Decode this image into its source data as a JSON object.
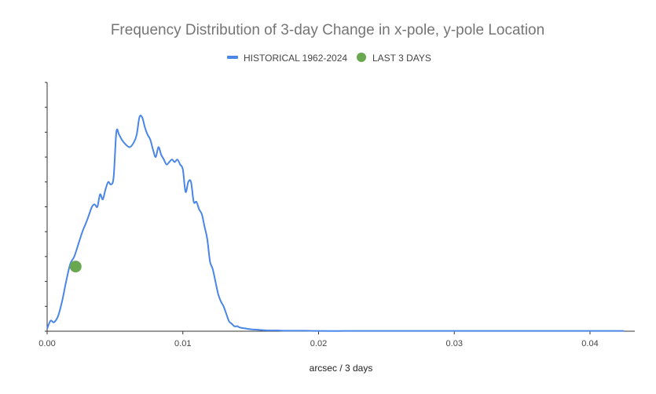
{
  "chart_data": {
    "type": "line",
    "title": "Frequency Distribution of 3-day Change in x-pole, y-pole Location",
    "xlabel": "arcsec / 3 days",
    "ylabel": "",
    "xlim": [
      0,
      0.0433
    ],
    "ylim": [
      0,
      1.0
    ],
    "x_ticks": [
      0.0,
      0.01,
      0.02,
      0.03,
      0.04
    ],
    "x_tick_labels": [
      "0.00",
      "0.01",
      "0.02",
      "0.03",
      "0.04"
    ],
    "y_tick_labels_shown": false,
    "grid": false,
    "legend": "top-center",
    "series": [
      {
        "name": "HISTORICAL 1962-2024",
        "type": "line",
        "color": "#4a86e8",
        "x": [
          0.0,
          0.00025,
          0.0005,
          0.0008,
          0.0011,
          0.0014,
          0.0017,
          0.002,
          0.0023,
          0.0026,
          0.0029,
          0.0031,
          0.0033,
          0.0035,
          0.0037,
          0.0039,
          0.0041,
          0.0043,
          0.0045,
          0.0047,
          0.0049,
          0.0051,
          0.0053,
          0.0055,
          0.0058,
          0.0061,
          0.0064,
          0.0066,
          0.0068,
          0.007,
          0.0072,
          0.0074,
          0.0076,
          0.0078,
          0.008,
          0.0082,
          0.0084,
          0.0086,
          0.0088,
          0.009,
          0.0092,
          0.0094,
          0.0096,
          0.0098,
          0.01,
          0.0102,
          0.0104,
          0.0106,
          0.0108,
          0.011,
          0.0112,
          0.0114,
          0.0116,
          0.0118,
          0.012,
          0.0122,
          0.0124,
          0.0126,
          0.0128,
          0.013,
          0.0132,
          0.0134,
          0.0136,
          0.0138,
          0.014,
          0.0142,
          0.0145,
          0.015,
          0.0155,
          0.016,
          0.0165,
          0.017,
          0.0175,
          0.018,
          0.019,
          0.02,
          0.022,
          0.024,
          0.026,
          0.028,
          0.03,
          0.032,
          0.034,
          0.036,
          0.038,
          0.04,
          0.0425
        ],
        "values": [
          0.01,
          0.042,
          0.036,
          0.06,
          0.12,
          0.2,
          0.27,
          0.3,
          0.35,
          0.4,
          0.44,
          0.47,
          0.5,
          0.51,
          0.5,
          0.55,
          0.53,
          0.57,
          0.6,
          0.59,
          0.62,
          0.8,
          0.79,
          0.77,
          0.75,
          0.74,
          0.76,
          0.79,
          0.86,
          0.86,
          0.82,
          0.79,
          0.77,
          0.73,
          0.7,
          0.74,
          0.71,
          0.69,
          0.67,
          0.68,
          0.69,
          0.68,
          0.69,
          0.67,
          0.65,
          0.56,
          0.6,
          0.6,
          0.52,
          0.52,
          0.49,
          0.47,
          0.42,
          0.37,
          0.28,
          0.25,
          0.2,
          0.15,
          0.12,
          0.1,
          0.07,
          0.04,
          0.03,
          0.02,
          0.02,
          0.015,
          0.012,
          0.008,
          0.006,
          0.004,
          0.003,
          0.003,
          0.002,
          0.002,
          0.002,
          0.001,
          0.001,
          0.001,
          0.001,
          0.001,
          0.001,
          0.001,
          0.001,
          0.001,
          0.001,
          0.001,
          0.001
        ]
      },
      {
        "name": "LAST 3 DAYS",
        "type": "scatter",
        "color": "#6aa84f",
        "x": [
          0.0021
        ],
        "values": [
          0.26
        ]
      }
    ]
  }
}
